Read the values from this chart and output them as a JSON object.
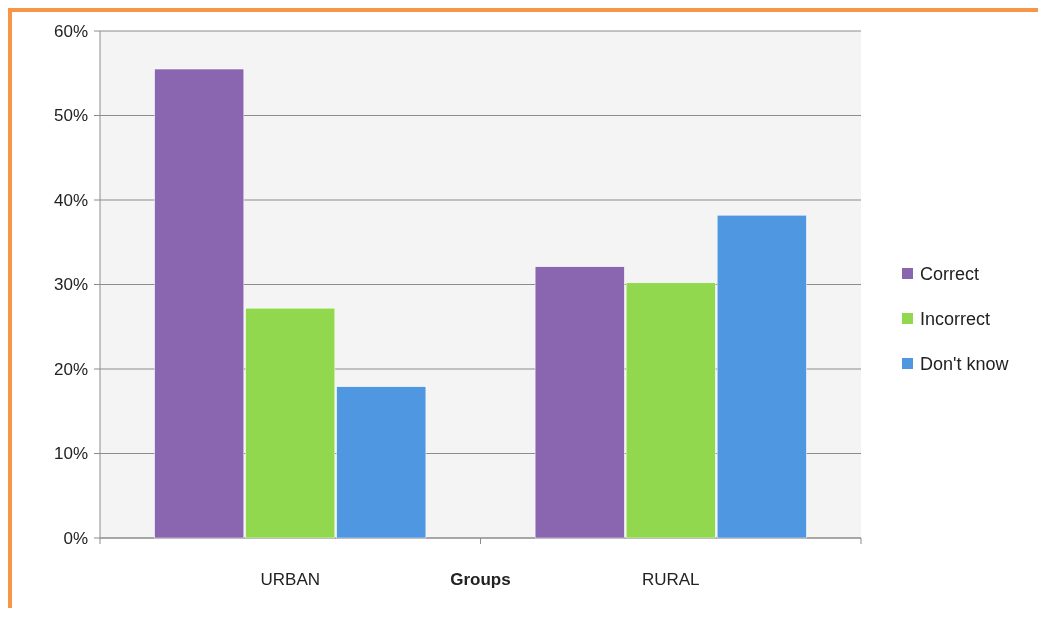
{
  "chart_data": {
    "type": "bar",
    "xlabel": "Groups",
    "categories": [
      "URBAN",
      "RURAL"
    ],
    "series": [
      {
        "name": "Correct",
        "color": "#8a66b0",
        "values": [
          55.5,
          32.1
        ]
      },
      {
        "name": "Incorrect",
        "color": "#92d84e",
        "values": [
          27.2,
          30.2
        ]
      },
      {
        "name": "Don't know",
        "color": "#4f97e0",
        "values": [
          17.9,
          38.2
        ]
      }
    ],
    "ylim": [
      0,
      60
    ],
    "yticks": [
      {
        "value": 0,
        "label": "0%"
      },
      {
        "value": 10,
        "label": "10%"
      },
      {
        "value": 20,
        "label": "20%"
      },
      {
        "value": 30,
        "label": "30%"
      },
      {
        "value": 40,
        "label": "40%"
      },
      {
        "value": 50,
        "label": "50%"
      },
      {
        "value": 60,
        "label": "60%"
      }
    ],
    "grid": "y",
    "legend": "right"
  }
}
